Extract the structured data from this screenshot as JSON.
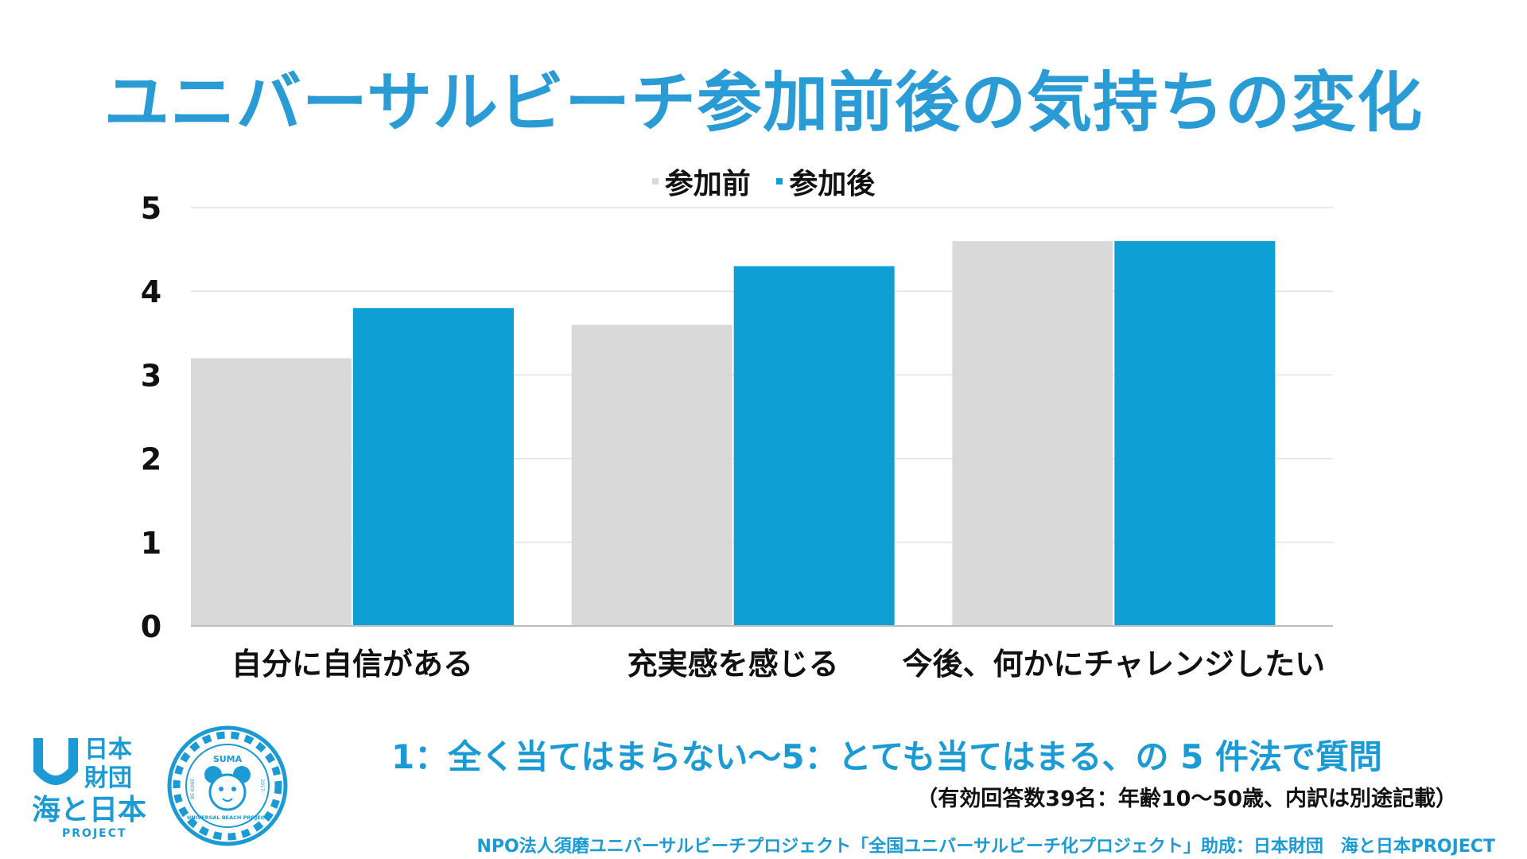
{
  "title": "ユニバーサルビーチ参加前後の気持ちの変化",
  "legend": [
    {
      "label": "参加前",
      "color": "#d9d9d9"
    },
    {
      "label": "参加後",
      "color": "#0ea0d4"
    }
  ],
  "chart_data": {
    "type": "bar",
    "title": "ユニバーサルビーチ参加前後の気持ちの変化",
    "categories": [
      "自分に自信がある",
      "充実感を感じる",
      "今後、何かにチャレンジしたい"
    ],
    "series": [
      {
        "name": "参加前",
        "color": "#d9d9d9",
        "values": [
          3.2,
          3.6,
          4.6
        ]
      },
      {
        "name": "参加後",
        "color": "#0ea0d4",
        "values": [
          3.8,
          4.3,
          4.6
        ]
      }
    ],
    "ylim": [
      0,
      5
    ],
    "yticks": [
      "0",
      "1",
      "2",
      "3",
      "4",
      "5"
    ],
    "xlabel": "",
    "ylabel": "",
    "legend_position": "top-center",
    "grid": true
  },
  "note": "1：全く当てはまらない〜5：とても当てはまる、の 5 件法で質問",
  "subnote": "（有効回答数39名：年齢10〜50歳、内訳は別途記載）",
  "footer": "NPO法人須磨ユニバーサルビーチプロジェクト「全国ユニバーサルビーチ化プロジェクト」助成：日本財団　海と日本PROJECT",
  "logos": {
    "nippon_foundation": {
      "line1": "日本",
      "line2": "財団",
      "line3": "海と日本",
      "line4": "PROJECT"
    },
    "suma": {
      "top": "SUMA",
      "bottom": "UNIVERSAL BEACH PROJECT",
      "left": "BE KOBE",
      "right": "2017-"
    }
  },
  "colors": {
    "accent": "#1b9ad4",
    "before": "#d9d9d9",
    "after": "#0ea0d4"
  }
}
